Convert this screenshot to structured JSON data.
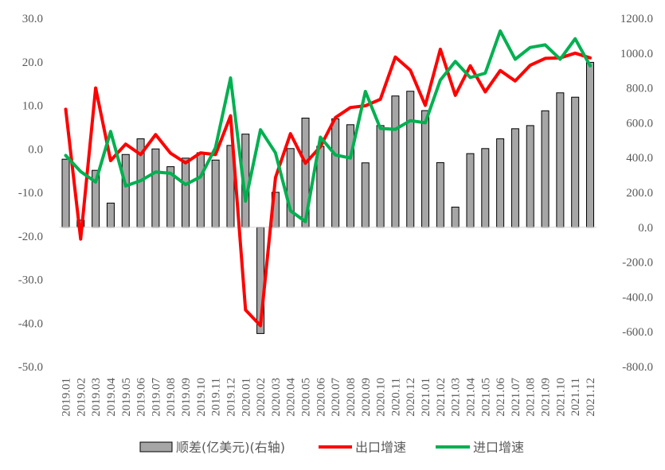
{
  "chart_data": {
    "type": "bar+line",
    "categories": [
      "2019.01",
      "2019.02",
      "2019.03",
      "2019.04",
      "2019.05",
      "2019.06",
      "2019.07",
      "2019.08",
      "2019.09",
      "2019.10",
      "2019.11",
      "2019.12",
      "2020.01",
      "2020.02",
      "2020.03",
      "2020.04",
      "2020.05",
      "2020.06",
      "2020.07",
      "2020.08",
      "2020.09",
      "2020.10",
      "2020.11",
      "2020.12",
      "2021.01",
      "2021.02",
      "2021.03",
      "2021.04",
      "2021.05",
      "2021.06",
      "2021.07",
      "2021.08",
      "2021.09",
      "2021.10",
      "2021.11",
      "2021.12"
    ],
    "left_axis": {
      "min": -50,
      "max": 30,
      "step": 10,
      "tick_labels": [
        "30.0",
        "20.0",
        "10.0",
        "0.0",
        "-10.0",
        "-20.0",
        "-30.0",
        "-40.0",
        "-50.0"
      ]
    },
    "right_axis": {
      "min": -800,
      "max": 1200,
      "step": 200,
      "tick_labels": [
        "1200.0",
        "1000.0",
        "800.0",
        "600.0",
        "400.0",
        "200.0",
        "0.0",
        "-200.0",
        "-400.0",
        "-600.0",
        "-800.0"
      ]
    },
    "series": [
      {
        "name": "顺差(亿美元)(右轴)",
        "type": "bar",
        "axis": "right",
        "color": "#a6a6a6",
        "values": [
          391,
          41,
          327,
          139,
          418,
          508,
          450,
          348,
          397,
          428,
          386,
          470,
          535,
          -610,
          201,
          452,
          627,
          465,
          623,
          589,
          370,
          584,
          754,
          781,
          670,
          371,
          116,
          423,
          452,
          508,
          566,
          584,
          669,
          772,
          747,
          947
        ]
      },
      {
        "name": "出口增速",
        "type": "line",
        "axis": "left",
        "color": "#ff0000",
        "values": [
          9.1,
          -20.7,
          14.0,
          -2.7,
          1.1,
          -1.3,
          3.3,
          -1.0,
          -3.2,
          -0.9,
          -1.3,
          7.6,
          -37,
          -40.6,
          -6.6,
          3.5,
          -3.3,
          0.5,
          7.2,
          9.5,
          9.9,
          11.4,
          21.1,
          18.1,
          10.0,
          22.9,
          12.3,
          19.1,
          13.1,
          18.0,
          15.6,
          19.2,
          20.8,
          20.9,
          22.0,
          20.9
        ]
      },
      {
        "name": "进口增速",
        "type": "line",
        "axis": "left",
        "color": "#00b050",
        "values": [
          -1.5,
          -5.2,
          -7.6,
          4.0,
          -8.5,
          -7.3,
          -5.3,
          -5.6,
          -8.2,
          -6.4,
          0.3,
          16.3,
          -12,
          4.4,
          -0.9,
          -14.2,
          -16.7,
          2.7,
          -1.4,
          -2.1,
          13.2,
          4.7,
          4.5,
          6.5,
          6.0,
          15.8,
          20.1,
          16.4,
          17.4,
          27.1,
          20.6,
          23.3,
          23.9,
          20.6,
          25.3,
          19.1
        ]
      }
    ],
    "legend_position": "bottom",
    "grid": false
  }
}
